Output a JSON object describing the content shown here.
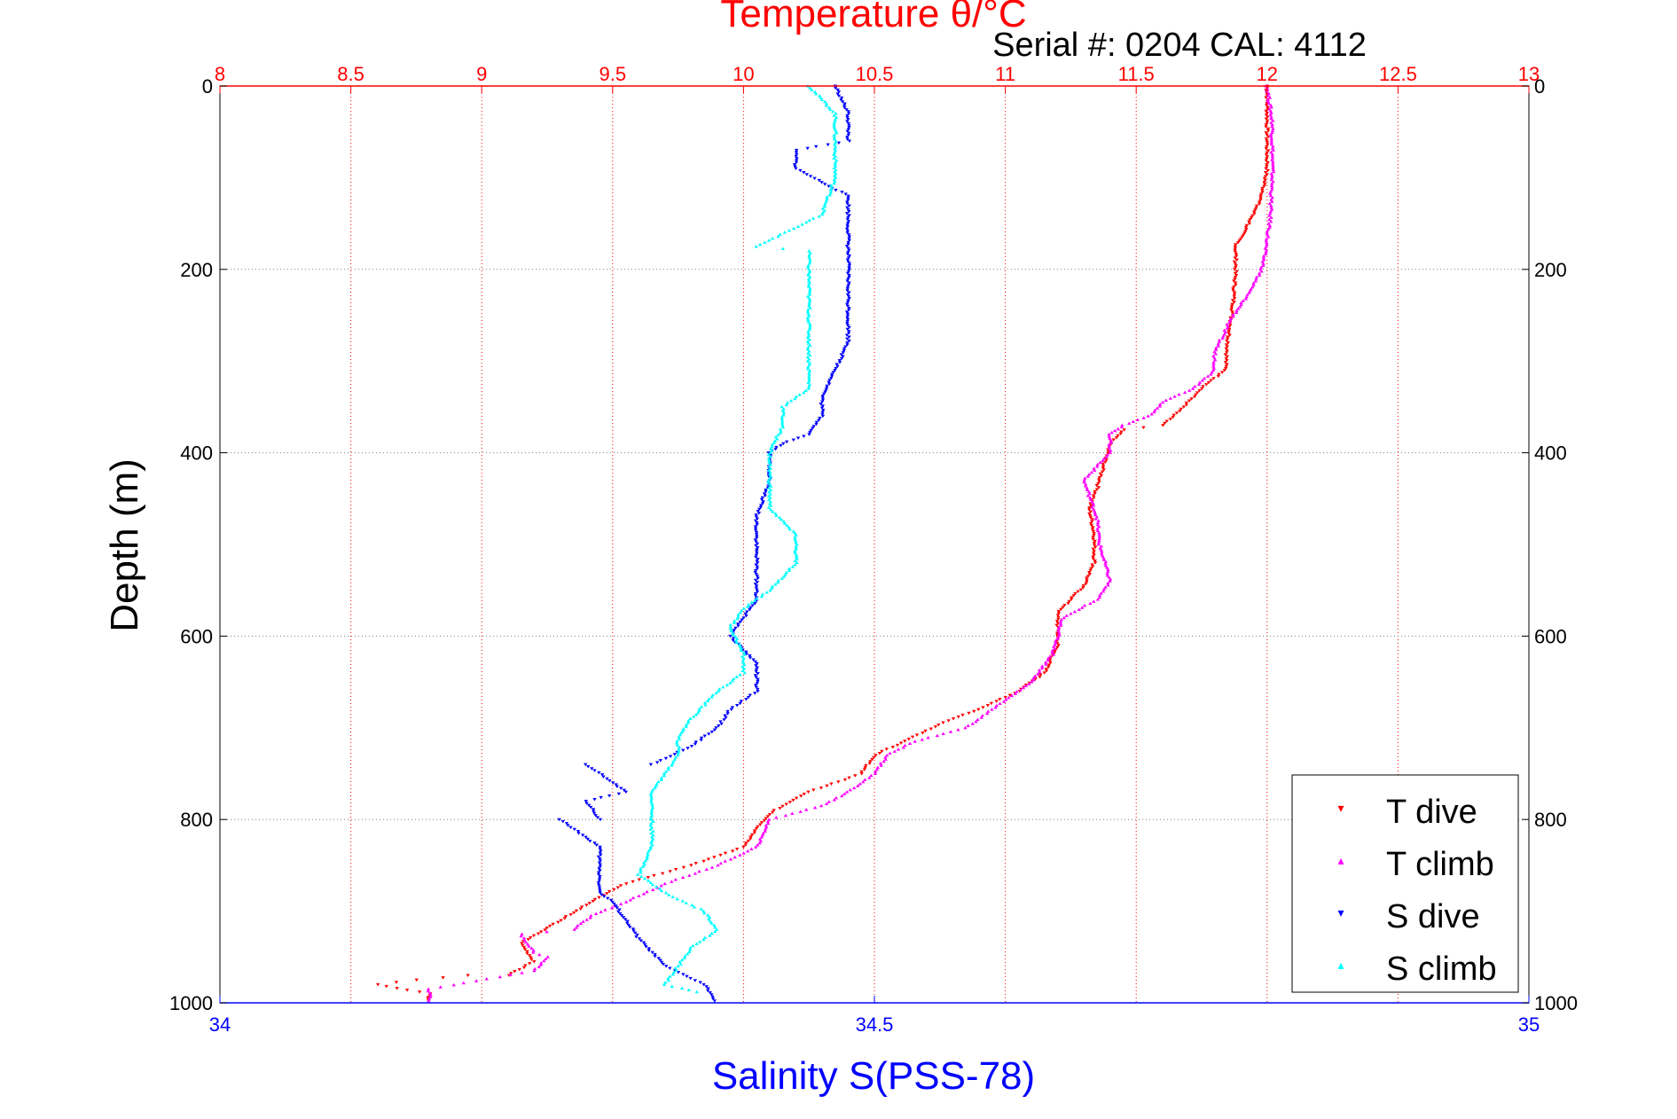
{
  "chart_data": {
    "type": "scatter",
    "title": "Temperature θ/°C",
    "subtitle": "Serial #: 0204  CAL: 4112",
    "ylabel": "Depth (m)",
    "xlabel_bottom": "Salinity S(PSS-78)",
    "xlabel_top": "Temperature θ/°C",
    "ylim": [
      0,
      1000
    ],
    "y_reversed": true,
    "x_top_lim": [
      8,
      13
    ],
    "x_bottom_lim": [
      34,
      35
    ],
    "x_top_ticks": [
      "8",
      "8.5",
      "9",
      "9.5",
      "10",
      "10.5",
      "11",
      "11.5",
      "12",
      "12.5",
      "13"
    ],
    "x_bottom_ticks": [
      "34",
      "34.5",
      "35"
    ],
    "y_ticks": [
      "0",
      "200",
      "400",
      "600",
      "800",
      "1000"
    ],
    "grid": true,
    "legend_position": "bottom-right",
    "colors": {
      "top_axis": "#ff0000",
      "bottom_axis": "#0000ff",
      "grid_vertical": "#ff0000",
      "grid_horizontal": "#808080"
    },
    "series": [
      {
        "name": "T dive",
        "axis": "top",
        "color": "#ff0000",
        "marker": "▾",
        "points": [
          [
            12.0,
            0
          ],
          [
            12.0,
            40
          ],
          [
            12.0,
            90
          ],
          [
            11.98,
            120
          ],
          [
            11.93,
            150
          ],
          [
            11.88,
            175
          ],
          [
            11.88,
            200
          ],
          [
            11.87,
            240
          ],
          [
            11.85,
            280
          ],
          [
            11.84,
            310
          ],
          [
            11.75,
            330
          ],
          [
            11.68,
            350
          ],
          [
            11.6,
            370
          ],
          [
            11.45,
            375
          ],
          [
            11.4,
            390
          ],
          [
            11.38,
            410
          ],
          [
            11.35,
            440
          ],
          [
            11.32,
            460
          ],
          [
            11.34,
            490
          ],
          [
            11.34,
            520
          ],
          [
            11.3,
            545
          ],
          [
            11.2,
            575
          ],
          [
            11.2,
            610
          ],
          [
            11.15,
            640
          ],
          [
            11.05,
            660
          ],
          [
            10.9,
            680
          ],
          [
            10.8,
            690
          ],
          [
            10.65,
            710
          ],
          [
            10.5,
            730
          ],
          [
            10.45,
            750
          ],
          [
            10.25,
            770
          ],
          [
            10.12,
            790
          ],
          [
            10.05,
            810
          ],
          [
            10.0,
            830
          ],
          [
            9.8,
            850
          ],
          [
            9.55,
            870
          ],
          [
            9.45,
            885
          ],
          [
            9.3,
            910
          ],
          [
            9.15,
            935
          ],
          [
            9.2,
            955
          ],
          [
            9.1,
            970
          ],
          [
            8.95,
            970
          ],
          [
            8.75,
            975
          ],
          [
            8.6,
            980
          ],
          [
            8.8,
            990
          ],
          [
            8.8,
            1000
          ]
        ]
      },
      {
        "name": "T climb",
        "axis": "top",
        "color": "#ff00ff",
        "marker": "▴",
        "points": [
          [
            12.0,
            0
          ],
          [
            12.02,
            40
          ],
          [
            12.02,
            100
          ],
          [
            12.01,
            150
          ],
          [
            11.98,
            200
          ],
          [
            11.92,
            230
          ],
          [
            11.85,
            260
          ],
          [
            11.8,
            290
          ],
          [
            11.8,
            310
          ],
          [
            11.72,
            330
          ],
          [
            11.6,
            345
          ],
          [
            11.55,
            360
          ],
          [
            11.45,
            370
          ],
          [
            11.4,
            380
          ],
          [
            11.4,
            400
          ],
          [
            11.3,
            430
          ],
          [
            11.35,
            470
          ],
          [
            11.36,
            500
          ],
          [
            11.4,
            540
          ],
          [
            11.35,
            560
          ],
          [
            11.22,
            580
          ],
          [
            11.18,
            620
          ],
          [
            11.1,
            650
          ],
          [
            10.95,
            680
          ],
          [
            10.85,
            700
          ],
          [
            10.65,
            715
          ],
          [
            10.55,
            730
          ],
          [
            10.5,
            750
          ],
          [
            10.4,
            770
          ],
          [
            10.3,
            785
          ],
          [
            10.1,
            800
          ],
          [
            10.05,
            830
          ],
          [
            9.9,
            850
          ],
          [
            9.7,
            870
          ],
          [
            9.55,
            890
          ],
          [
            9.42,
            905
          ],
          [
            9.35,
            920
          ],
          [
            9.15,
            925
          ],
          [
            9.2,
            945
          ],
          [
            9.25,
            950
          ],
          [
            9.2,
            965
          ],
          [
            8.8,
            985
          ],
          [
            8.8,
            1000
          ]
        ]
      },
      {
        "name": "S dive",
        "axis": "bottom",
        "color": "#0000ff",
        "marker": "▾",
        "points": [
          [
            34.47,
            0
          ],
          [
            34.48,
            30
          ],
          [
            34.48,
            60
          ],
          [
            34.44,
            70
          ],
          [
            34.44,
            90
          ],
          [
            34.48,
            120
          ],
          [
            34.48,
            160
          ],
          [
            34.48,
            200
          ],
          [
            34.48,
            240
          ],
          [
            34.48,
            280
          ],
          [
            34.47,
            310
          ],
          [
            34.46,
            340
          ],
          [
            34.46,
            360
          ],
          [
            34.45,
            380
          ],
          [
            34.43,
            390
          ],
          [
            34.42,
            400
          ],
          [
            34.42,
            430
          ],
          [
            34.41,
            470
          ],
          [
            34.41,
            520
          ],
          [
            34.41,
            560
          ],
          [
            34.4,
            580
          ],
          [
            34.39,
            600
          ],
          [
            34.41,
            630
          ],
          [
            34.41,
            660
          ],
          [
            34.39,
            680
          ],
          [
            34.38,
            700
          ],
          [
            34.36,
            720
          ],
          [
            34.33,
            740
          ],
          [
            34.3,
            760
          ],
          [
            34.28,
            780
          ],
          [
            34.29,
            800
          ],
          [
            34.29,
            830
          ],
          [
            34.29,
            860
          ],
          [
            34.3,
            890
          ],
          [
            34.32,
            930
          ],
          [
            34.34,
            960
          ],
          [
            34.37,
            980
          ],
          [
            34.38,
            1000
          ],
          [
            34.28,
            740
          ],
          [
            34.31,
            770
          ],
          [
            34.26,
            800
          ],
          [
            34.29,
            880
          ]
        ]
      },
      {
        "name": "S climb",
        "axis": "bottom",
        "color": "#00ffff",
        "marker": "▴",
        "points": [
          [
            34.45,
            0
          ],
          [
            34.47,
            30
          ],
          [
            34.47,
            60
          ],
          [
            34.47,
            100
          ],
          [
            34.46,
            140
          ],
          [
            34.45,
            180
          ],
          [
            34.41,
            175
          ],
          [
            34.45,
            200
          ],
          [
            34.45,
            240
          ],
          [
            34.45,
            270
          ],
          [
            34.45,
            300
          ],
          [
            34.45,
            330
          ],
          [
            34.43,
            350
          ],
          [
            34.43,
            370
          ],
          [
            34.42,
            400
          ],
          [
            34.42,
            430
          ],
          [
            34.42,
            460
          ],
          [
            34.44,
            490
          ],
          [
            34.44,
            520
          ],
          [
            34.42,
            550
          ],
          [
            34.4,
            570
          ],
          [
            34.39,
            590
          ],
          [
            34.4,
            620
          ],
          [
            34.4,
            640
          ],
          [
            34.38,
            660
          ],
          [
            34.36,
            690
          ],
          [
            34.35,
            710
          ],
          [
            34.35,
            730
          ],
          [
            34.34,
            750
          ],
          [
            34.33,
            770
          ],
          [
            34.33,
            800
          ],
          [
            34.33,
            830
          ],
          [
            34.32,
            860
          ],
          [
            34.34,
            880
          ],
          [
            34.37,
            900
          ],
          [
            34.38,
            920
          ],
          [
            34.36,
            940
          ],
          [
            34.35,
            960
          ],
          [
            34.34,
            980
          ],
          [
            34.37,
            990
          ]
        ]
      }
    ]
  }
}
